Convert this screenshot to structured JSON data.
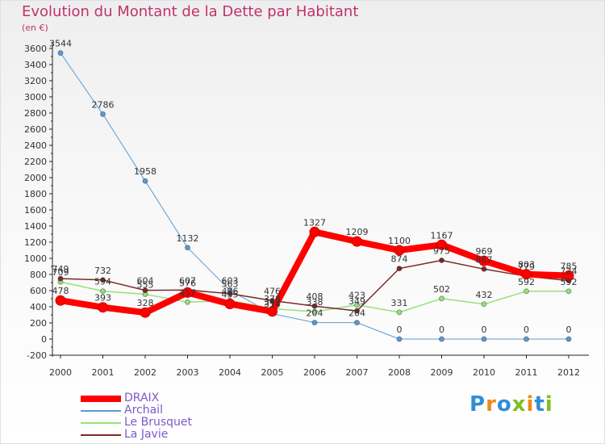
{
  "title": "Evolution du Montant de la Dette par Habitant",
  "subtitle": "(en €)",
  "logo": {
    "letters": [
      {
        "ch": "P",
        "color": "#2f8fd6"
      },
      {
        "ch": "r",
        "color": "#ef8a1a"
      },
      {
        "ch": "o",
        "color": "#2f8fd6"
      },
      {
        "ch": "x",
        "color": "#7fbf1f"
      },
      {
        "ch": "i",
        "color": "#ef8a1a"
      },
      {
        "ch": "t",
        "color": "#2f8fd6"
      },
      {
        "ch": "i",
        "color": "#7fbf1f"
      }
    ]
  },
  "chart_data": {
    "type": "line",
    "title": "Evolution du Montant de la Dette par Habitant",
    "subtitle": "(en €)",
    "x": [
      "2000",
      "2001",
      "2002",
      "2003",
      "2004",
      "2005",
      "2006",
      "2007",
      "2008",
      "2009",
      "2010",
      "2011",
      "2012"
    ],
    "ylim": [
      -200,
      3600
    ],
    "yticks": [
      -200,
      0,
      200,
      400,
      600,
      800,
      1000,
      1200,
      1400,
      1600,
      1800,
      2000,
      2200,
      2400,
      2600,
      2800,
      3000,
      3200,
      3400,
      3600
    ],
    "grid": false,
    "legend_position": "bottom-left",
    "series": [
      {
        "name": "DRAIX",
        "color": "#ff0000",
        "width": 8,
        "marker": 6,
        "labels": true,
        "values": [
          478,
          393,
          328,
          576,
          435,
          342,
          1327,
          1209,
          1100,
          1167,
          969,
          803,
          785
        ]
      },
      {
        "name": "Archail",
        "color": "#5a9bd4",
        "width": 1,
        "marker": 3,
        "labels": true,
        "values": [
          3544,
          2786,
          1958,
          1132,
          603,
          314,
          204,
          204,
          0,
          0,
          0,
          0,
          0
        ]
      },
      {
        "name": "Le Brusquet",
        "color": "#98e07a",
        "width": 1.5,
        "marker": 3,
        "labels": true,
        "values": [
          709,
          594,
          555,
          457,
          476,
          378,
          338,
          423,
          331,
          502,
          432,
          592,
          592
        ]
      },
      {
        "name": "La Javie",
        "color": "#7a2a2a",
        "width": 1.5,
        "marker": 3,
        "labels": true,
        "values": [
          749,
          732,
          604,
          607,
          563,
          476,
          408,
          349,
          874,
          975,
          867,
          779,
          724
        ]
      }
    ]
  }
}
